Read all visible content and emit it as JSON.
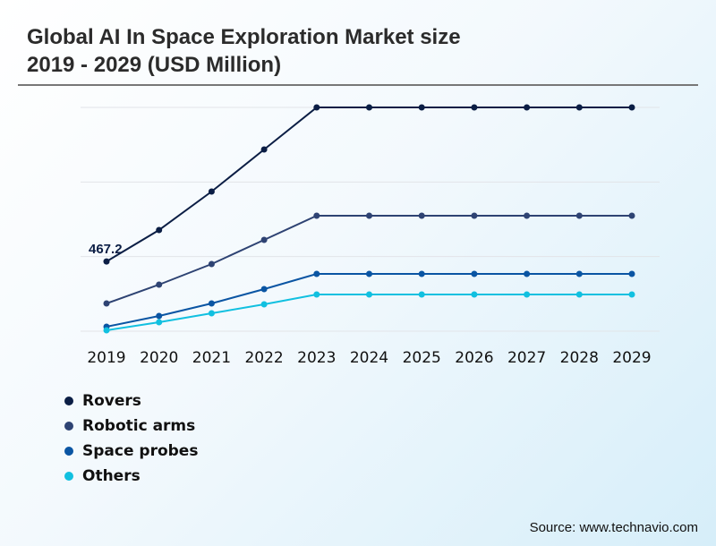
{
  "chart_data": {
    "type": "line",
    "title": "Global AI In Space Exploration Market size\n2019 - 2029 (USD Million)",
    "title_lines": [
      "Global AI In Space Exploration Market size",
      "2019 - 2029 (USD Million)"
    ],
    "xlabel": "",
    "ylabel": "",
    "x": [
      "2019",
      "2020",
      "2021",
      "2022",
      "2023",
      "2024",
      "2025",
      "2026",
      "2027",
      "2028",
      "2029"
    ],
    "ylim": [
      0,
      1500
    ],
    "y_gridlines": [
      0,
      500,
      1000,
      1500
    ],
    "y_tick_labels_shown": false,
    "grid": true,
    "legend_position": "bottom-left",
    "series": [
      {
        "name": "Rovers",
        "color": "#0b1e45",
        "values": [
          467.2,
          678,
          936,
          1218,
          1500,
          1500,
          1500,
          1500,
          1500,
          1500,
          1500
        ]
      },
      {
        "name": "Robotic arms",
        "color": "#2e4373",
        "values": [
          186,
          312,
          450,
          612,
          774,
          774,
          774,
          774,
          774,
          774,
          774
        ]
      },
      {
        "name": "Space probes",
        "color": "#0a55a3",
        "values": [
          30,
          102,
          186,
          282,
          384,
          384,
          384,
          384,
          384,
          384,
          384
        ]
      },
      {
        "name": "Others",
        "color": "#11c0e0",
        "values": [
          6,
          60,
          120,
          180,
          246,
          246,
          246,
          246,
          246,
          246,
          246
        ]
      }
    ],
    "annotations": [
      {
        "series": "Rovers",
        "x": "2019",
        "text": "467.2"
      }
    ]
  },
  "source": "Source: www.technavio.com"
}
